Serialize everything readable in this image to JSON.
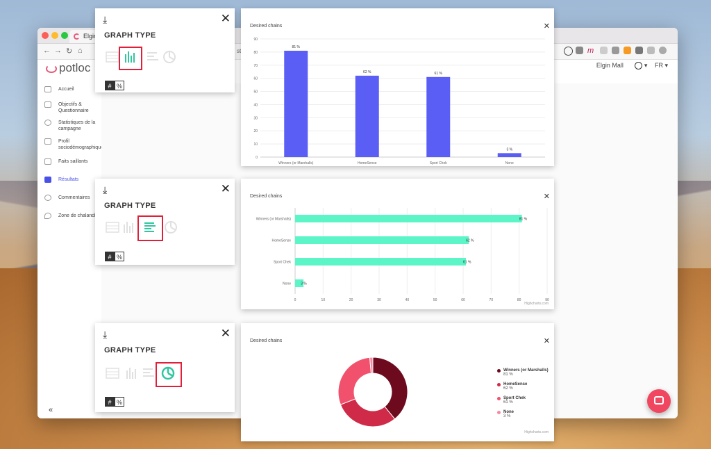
{
  "browser": {
    "tab_title": "Elgin M",
    "url_fragment": "st"
  },
  "header": {
    "brand": "potloc",
    "user_name": "Elgin Mall",
    "language": "FR"
  },
  "sidebar": {
    "items": [
      {
        "label": "Accueil",
        "icon": "home-icon"
      },
      {
        "label": "Objectifs & Questionnaire",
        "icon": "clipboard-icon"
      },
      {
        "label": "Statistiques de la campagne",
        "icon": "stats-icon"
      },
      {
        "label": "Profil sociodémographique",
        "icon": "people-icon"
      },
      {
        "label": "Faits saillants",
        "icon": "highlights-icon"
      },
      {
        "label": "Résultats",
        "icon": "results-icon"
      },
      {
        "label": "Commentaires",
        "icon": "comment-icon"
      },
      {
        "label": "Zone de chalandise",
        "icon": "pin-icon"
      }
    ],
    "collapse_label": "«"
  },
  "graph_type_panels": [
    {
      "title": "GRAPH TYPE",
      "selected": "column",
      "hash_label": "#",
      "percent_label": "%"
    },
    {
      "title": "GRAPH TYPE",
      "selected": "bar",
      "hash_label": "#",
      "percent_label": "%"
    },
    {
      "title": "GRAPH TYPE",
      "selected": "pie",
      "hash_label": "#",
      "percent_label": "%"
    }
  ],
  "colors": {
    "column": "#5b5ef5",
    "bar": "#5cf5c8",
    "accent": "#30c6a0",
    "select_border": "#e0203a",
    "pie": [
      "#6d0a1e",
      "#cf2a47",
      "#f2516d",
      "#f58aa0"
    ],
    "fab": "#f0465f"
  },
  "chart_data": [
    {
      "type": "bar",
      "orientation": "vertical",
      "title": "Desired chains",
      "categories": [
        "Winners (or Marshalls)",
        "HomeSense",
        "Sport Chek",
        "None"
      ],
      "values": [
        81,
        62,
        61,
        3
      ],
      "data_labels": [
        "81 %",
        "62 %",
        "61 %",
        "3 %"
      ],
      "ylim": [
        0,
        90
      ],
      "yticks": [
        0,
        10,
        20,
        30,
        40,
        50,
        60,
        70,
        80,
        90
      ],
      "grid": true
    },
    {
      "type": "bar",
      "orientation": "horizontal",
      "title": "Desired chains",
      "categories": [
        "Winners (or Marshalls)",
        "HomeSense",
        "Sport Chek",
        "None"
      ],
      "values": [
        81,
        62,
        61,
        3
      ],
      "data_labels": [
        "81 %",
        "62 %",
        "61 %",
        "3 %"
      ],
      "xlim": [
        0,
        90
      ],
      "xticks": [
        0,
        10,
        20,
        30,
        40,
        50,
        60,
        70,
        80,
        90
      ],
      "grid": true,
      "credit": "Highcharts.com"
    },
    {
      "type": "pie",
      "donut": true,
      "title": "Desired chains",
      "categories": [
        "Winners (or Marshalls)",
        "HomeSense",
        "Sport Chek",
        "None"
      ],
      "values": [
        81,
        62,
        61,
        3
      ],
      "data_labels": [
        "81 %",
        "62 %",
        "61 %",
        "3 %"
      ],
      "legend": "right",
      "credit": "Highcharts.com"
    }
  ]
}
